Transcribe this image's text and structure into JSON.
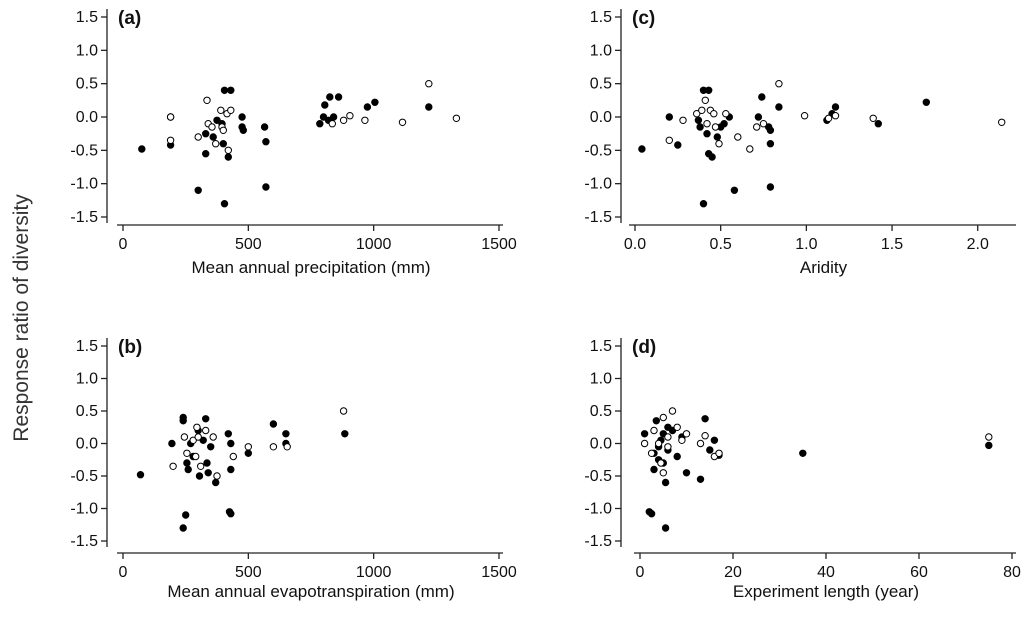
{
  "figure": {
    "ylabel": "Response ratio of diversity"
  },
  "chart_data": [
    {
      "id": "a",
      "type": "scatter",
      "panel_label": "(a)",
      "xlabel": "Mean annual precipitation (mm)",
      "xlim": [
        0,
        1500
      ],
      "ylim": [
        -1.5,
        1.5
      ],
      "xticks": [
        "0",
        "500",
        "1000",
        "1500"
      ],
      "yticks": [
        "1.5",
        "1.0",
        "0.5",
        "0.0",
        "-0.5",
        "-1.0",
        "-1.5"
      ],
      "grid": false,
      "series": [
        {
          "marker": "filled",
          "points": [
            [
              75,
              -0.48
            ],
            [
              190,
              -0.42
            ],
            [
              190,
              0.0
            ],
            [
              300,
              -1.1
            ],
            [
              330,
              -0.25
            ],
            [
              330,
              -0.55
            ],
            [
              360,
              -0.3
            ],
            [
              375,
              -0.05
            ],
            [
              395,
              -0.1
            ],
            [
              400,
              -0.4
            ],
            [
              405,
              -1.3
            ],
            [
              405,
              0.4
            ],
            [
              420,
              -0.6
            ],
            [
              430,
              0.4
            ],
            [
              475,
              -0.15
            ],
            [
              475,
              0.0
            ],
            [
              480,
              -0.2
            ],
            [
              565,
              -0.15
            ],
            [
              570,
              -0.37
            ],
            [
              570,
              -1.05
            ],
            [
              785,
              -0.1
            ],
            [
              800,
              0.0
            ],
            [
              805,
              0.18
            ],
            [
              820,
              -0.05
            ],
            [
              825,
              0.3
            ],
            [
              840,
              0.0
            ],
            [
              860,
              0.3
            ],
            [
              975,
              0.15
            ],
            [
              1005,
              0.22
            ],
            [
              1220,
              0.15
            ]
          ]
        },
        {
          "marker": "open",
          "points": [
            [
              190,
              -0.35
            ],
            [
              190,
              0.0
            ],
            [
              300,
              -0.3
            ],
            [
              335,
              0.25
            ],
            [
              340,
              -0.1
            ],
            [
              355,
              -0.15
            ],
            [
              370,
              -0.4
            ],
            [
              390,
              0.1
            ],
            [
              395,
              -0.15
            ],
            [
              400,
              -0.2
            ],
            [
              415,
              0.05
            ],
            [
              420,
              -0.5
            ],
            [
              430,
              0.1
            ],
            [
              835,
              -0.1
            ],
            [
              880,
              -0.05
            ],
            [
              905,
              0.02
            ],
            [
              965,
              -0.05
            ],
            [
              1115,
              -0.08
            ],
            [
              1220,
              0.5
            ],
            [
              1330,
              -0.02
            ]
          ]
        }
      ]
    },
    {
      "id": "b",
      "type": "scatter",
      "panel_label": "(b)",
      "xlabel": "Mean annual evapotranspiration (mm)",
      "xlim": [
        0,
        1500
      ],
      "ylim": [
        -1.5,
        1.5
      ],
      "xticks": [
        "0",
        "500",
        "1000",
        "1500"
      ],
      "yticks": [
        "1.5",
        "1.0",
        "0.5",
        "0.0",
        "-0.5",
        "-1.0",
        "-1.5"
      ],
      "grid": false,
      "series": [
        {
          "marker": "filled",
          "points": [
            [
              70,
              -0.48
            ],
            [
              195,
              0.0
            ],
            [
              240,
              0.4
            ],
            [
              240,
              0.35
            ],
            [
              240,
              -1.3
            ],
            [
              250,
              -1.1
            ],
            [
              255,
              -0.3
            ],
            [
              260,
              -0.4
            ],
            [
              270,
              0.0
            ],
            [
              280,
              -0.2
            ],
            [
              300,
              0.2
            ],
            [
              305,
              -0.5
            ],
            [
              320,
              0.05
            ],
            [
              330,
              0.38
            ],
            [
              335,
              -0.3
            ],
            [
              340,
              -0.45
            ],
            [
              350,
              -0.05
            ],
            [
              370,
              -0.6
            ],
            [
              420,
              0.15
            ],
            [
              425,
              -1.05
            ],
            [
              430,
              -1.08
            ],
            [
              430,
              0.0
            ],
            [
              430,
              -0.4
            ],
            [
              500,
              -0.15
            ],
            [
              600,
              0.3
            ],
            [
              650,
              0.15
            ],
            [
              650,
              0.0
            ],
            [
              885,
              0.15
            ]
          ]
        },
        {
          "marker": "open",
          "points": [
            [
              200,
              -0.35
            ],
            [
              245,
              0.1
            ],
            [
              255,
              -0.15
            ],
            [
              280,
              0.05
            ],
            [
              290,
              -0.2
            ],
            [
              295,
              0.25
            ],
            [
              300,
              0.1
            ],
            [
              310,
              -0.35
            ],
            [
              330,
              0.2
            ],
            [
              360,
              0.1
            ],
            [
              375,
              -0.5
            ],
            [
              440,
              -0.2
            ],
            [
              500,
              -0.05
            ],
            [
              600,
              -0.05
            ],
            [
              655,
              -0.05
            ],
            [
              880,
              0.5
            ]
          ]
        }
      ]
    },
    {
      "id": "c",
      "type": "scatter",
      "panel_label": "(c)",
      "xlabel": "Aridity",
      "xlim": [
        0,
        2.2
      ],
      "ylim": [
        -1.5,
        1.5
      ],
      "xticks": [
        "0.0",
        "0.5",
        "1.0",
        "1.5",
        "2.0"
      ],
      "yticks": [
        "1.5",
        "1.0",
        "0.5",
        "0.0",
        "-0.5",
        "-1.0",
        "-1.5"
      ],
      "grid": false,
      "series": [
        {
          "marker": "filled",
          "points": [
            [
              0.04,
              -0.48
            ],
            [
              0.2,
              0.0
            ],
            [
              0.25,
              -0.42
            ],
            [
              0.37,
              -0.05
            ],
            [
              0.38,
              -0.15
            ],
            [
              0.4,
              0.4
            ],
            [
              0.4,
              -1.3
            ],
            [
              0.42,
              -0.25
            ],
            [
              0.43,
              0.4
            ],
            [
              0.43,
              -0.55
            ],
            [
              0.45,
              -0.6
            ],
            [
              0.48,
              -0.3
            ],
            [
              0.5,
              -0.15
            ],
            [
              0.52,
              -0.1
            ],
            [
              0.55,
              0.0
            ],
            [
              0.58,
              -1.1
            ],
            [
              0.72,
              0.0
            ],
            [
              0.74,
              0.3
            ],
            [
              0.78,
              -0.15
            ],
            [
              0.79,
              -0.4
            ],
            [
              0.79,
              -0.2
            ],
            [
              0.79,
              -1.05
            ],
            [
              0.84,
              0.15
            ],
            [
              1.12,
              -0.05
            ],
            [
              1.15,
              0.05
            ],
            [
              1.17,
              0.15
            ],
            [
              1.42,
              -0.1
            ],
            [
              1.7,
              0.22
            ]
          ]
        },
        {
          "marker": "open",
          "points": [
            [
              0.2,
              -0.35
            ],
            [
              0.28,
              -0.05
            ],
            [
              0.36,
              0.05
            ],
            [
              0.39,
              0.1
            ],
            [
              0.41,
              0.25
            ],
            [
              0.42,
              -0.1
            ],
            [
              0.44,
              0.1
            ],
            [
              0.46,
              0.05
            ],
            [
              0.47,
              -0.15
            ],
            [
              0.49,
              -0.4
            ],
            [
              0.53,
              0.05
            ],
            [
              0.6,
              -0.3
            ],
            [
              0.67,
              -0.48
            ],
            [
              0.71,
              -0.15
            ],
            [
              0.75,
              -0.1
            ],
            [
              0.84,
              0.5
            ],
            [
              0.99,
              0.02
            ],
            [
              1.13,
              -0.02
            ],
            [
              1.17,
              0.02
            ],
            [
              1.39,
              -0.02
            ],
            [
              2.14,
              -0.08
            ]
          ]
        }
      ]
    },
    {
      "id": "d",
      "type": "scatter",
      "panel_label": "(d)",
      "xlabel": "Experiment length (year)",
      "xlim": [
        0,
        80
      ],
      "ylim": [
        -1.5,
        1.5
      ],
      "xticks": [
        "0",
        "20",
        "40",
        "60",
        "80"
      ],
      "yticks": [
        "1.5",
        "1.0",
        "0.5",
        "0.0",
        "-0.5",
        "-1.0",
        "-1.5"
      ],
      "grid": false,
      "series": [
        {
          "marker": "filled",
          "points": [
            [
              1,
              0.15
            ],
            [
              2,
              -1.05
            ],
            [
              2.5,
              -1.08
            ],
            [
              3,
              -0.15
            ],
            [
              3,
              -0.4
            ],
            [
              3.5,
              0.35
            ],
            [
              4,
              -0.05
            ],
            [
              4,
              -0.25
            ],
            [
              4.5,
              0.05
            ],
            [
              5,
              0.15
            ],
            [
              5,
              -0.3
            ],
            [
              5.5,
              -0.6
            ],
            [
              5.5,
              -1.3
            ],
            [
              6,
              0.25
            ],
            [
              6,
              -0.1
            ],
            [
              7,
              0.2
            ],
            [
              8,
              -0.2
            ],
            [
              9,
              0.1
            ],
            [
              10,
              -0.45
            ],
            [
              13,
              -0.55
            ],
            [
              14,
              0.38
            ],
            [
              15,
              -0.1
            ],
            [
              16,
              0.05
            ],
            [
              17,
              -0.18
            ],
            [
              35,
              -0.15
            ],
            [
              75,
              -0.03
            ]
          ]
        },
        {
          "marker": "open",
          "points": [
            [
              1,
              0.0
            ],
            [
              2.5,
              -0.15
            ],
            [
              3,
              0.2
            ],
            [
              4,
              0.0
            ],
            [
              4.5,
              -0.3
            ],
            [
              5,
              0.4
            ],
            [
              5,
              -0.45
            ],
            [
              6,
              -0.05
            ],
            [
              6,
              0.1
            ],
            [
              7,
              0.5
            ],
            [
              8,
              0.25
            ],
            [
              9,
              0.05
            ],
            [
              10,
              0.15
            ],
            [
              13,
              0.0
            ],
            [
              14,
              0.12
            ],
            [
              16,
              -0.2
            ],
            [
              17,
              -0.15
            ],
            [
              75,
              0.1
            ]
          ]
        }
      ]
    }
  ]
}
